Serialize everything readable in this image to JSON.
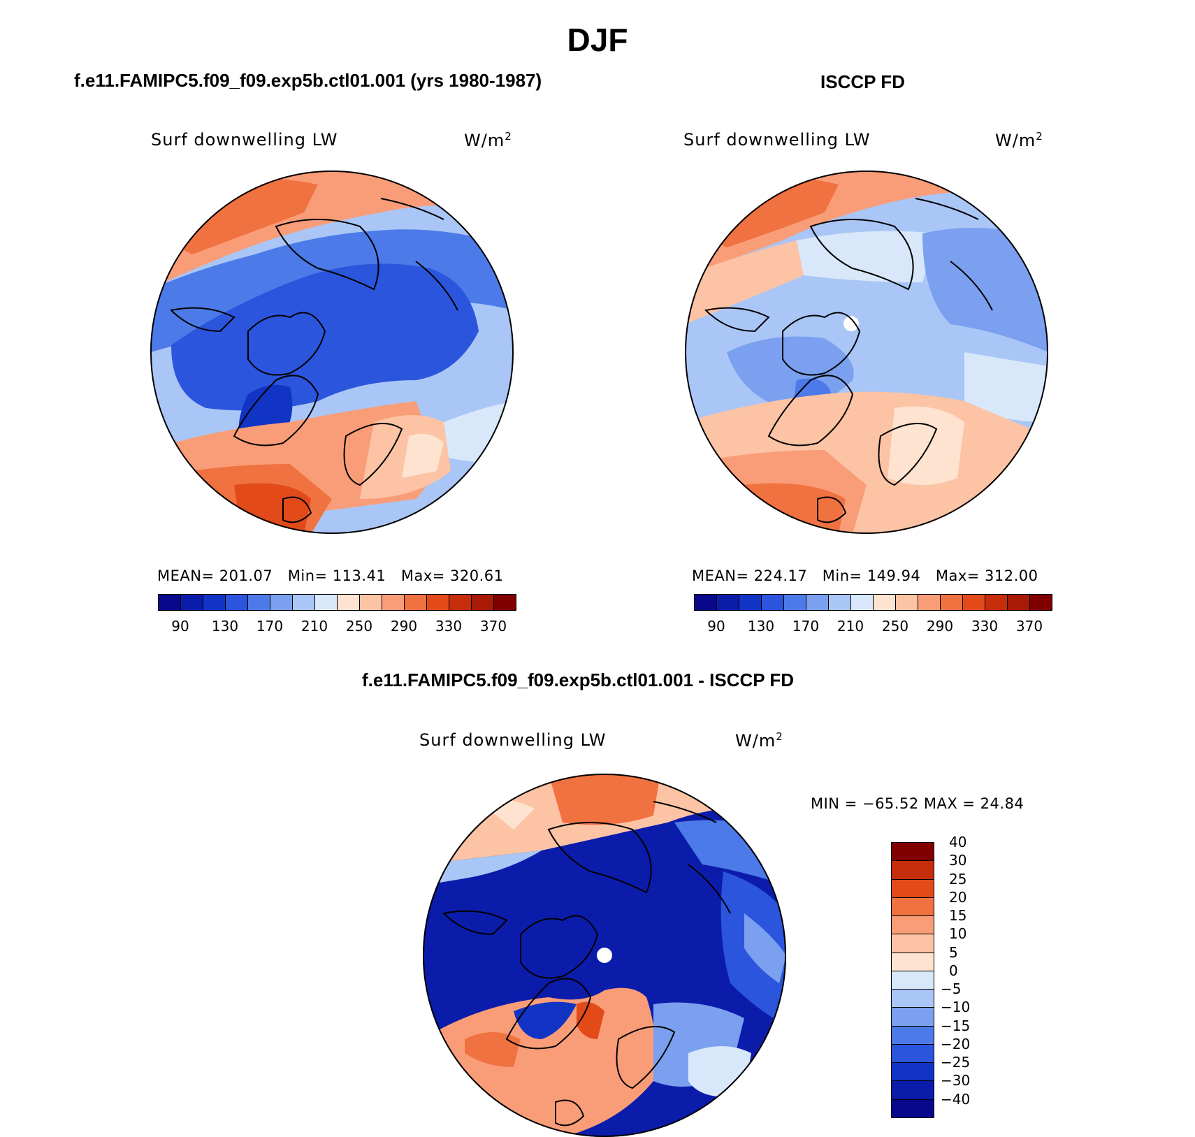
{
  "figure": {
    "season_title": "DJF",
    "bottom_title": "f.e11.FAMIPC5.f09_f09.exp5b.ctl01.001 - ISCCP FD",
    "min_max_text": "MIN = −65.52 MAX =   24.84"
  },
  "panels": [
    {
      "title": "f.e11.FAMIPC5.f09_f09.exp5b.ctl01.001 (yrs 1980-1987)",
      "variable": "Surf downwelling LW",
      "units": "W/m",
      "units_sup": "2",
      "stats": {
        "mean_label": "MEAN=",
        "mean": "201.07",
        "min_label": "Min=",
        "min": "113.41",
        "max_label": "Max=",
        "max": "320.61"
      }
    },
    {
      "title": "ISCCP FD",
      "variable": "Surf downwelling LW",
      "units": "W/m",
      "units_sup": "2",
      "stats": {
        "mean_label": "MEAN=",
        "mean": "224.17",
        "min_label": "Min=",
        "min": "149.94",
        "max_label": "Max=",
        "max": "312.00"
      }
    },
    {
      "title": "f.e11.FAMIPC5.f09_f09.exp5b.ctl01.001 - ISCCP FD",
      "variable": "Surf downwelling LW",
      "units": "W/m",
      "units_sup": "2"
    }
  ],
  "colorbar_abs": {
    "colors": [
      "#08088c",
      "#0c1caa",
      "#1234c4",
      "#2a55dc",
      "#4c7ae8",
      "#7aa0ef",
      "#aac6f6",
      "#d8e8fa",
      "#fde3d0",
      "#fcc3a4",
      "#f99d78",
      "#f07240",
      "#e24a1a",
      "#c52d0b",
      "#a81a06",
      "#800000"
    ],
    "tick_labels": [
      "90",
      "130",
      "170",
      "210",
      "250",
      "290",
      "330",
      "370"
    ]
  },
  "colorbar_diff": {
    "colors": [
      "#08088c",
      "#0c1caa",
      "#1234c4",
      "#2a55dc",
      "#4c7ae8",
      "#7aa0ef",
      "#aac6f6",
      "#d8e8fa",
      "#fde3d0",
      "#fcc3a4",
      "#f99d78",
      "#f07240",
      "#e24a1a",
      "#c52d0b",
      "#800000"
    ],
    "tick_labels": [
      "−40",
      "−30",
      "−25",
      "−20",
      "−15",
      "−10",
      "−5",
      "0",
      "5",
      "10",
      "15",
      "20",
      "25",
      "30",
      "40"
    ]
  }
}
